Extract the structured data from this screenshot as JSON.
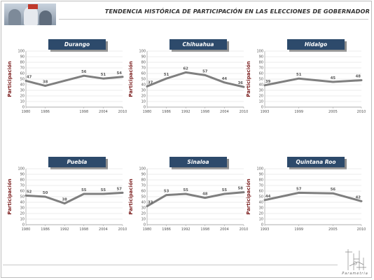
{
  "header": {
    "title": "TENDENCIA HISTÓRICA DE PARTICIPACIÓN EN LAS ELECCIONES DE GOBERNADOR"
  },
  "footer": {
    "logo_text": "Parametria"
  },
  "colors": {
    "line": "#7f7f7f",
    "title_button": "#2d4a6b",
    "title_button_shadow": "#8c8c8c",
    "axis_label": "#7a1c1c",
    "grid": "#d8d8d8"
  },
  "chart_data": [
    {
      "type": "line",
      "title": "Durango",
      "ylabel": "Participación",
      "ylim": [
        0,
        100
      ],
      "yticks": [
        "0",
        "10",
        "20",
        "30",
        "40",
        "50",
        "60",
        "70",
        "80",
        "90",
        "100"
      ],
      "x": [
        1980,
        1986,
        1998,
        2004,
        2010
      ],
      "xtick_labels": [
        "1980",
        "1986",
        "1998",
        "2004",
        "2010"
      ],
      "values": [
        47,
        38,
        56,
        51,
        54
      ],
      "labels": [
        "47",
        "38",
        "56",
        "51",
        "54"
      ],
      "grid": "horizontal"
    },
    {
      "type": "line",
      "title": "Chihuahua",
      "ylabel": "Participación",
      "ylim": [
        0,
        100
      ],
      "yticks": [
        "0",
        "10",
        "20",
        "30",
        "40",
        "50",
        "60",
        "70",
        "80",
        "90",
        "100"
      ],
      "x": [
        1980,
        1986,
        1992,
        1998,
        2004,
        2010
      ],
      "xtick_labels": [
        "1980",
        "1986",
        "1992",
        "1998",
        "2004",
        "2010"
      ],
      "values": [
        37,
        51,
        62,
        57,
        44,
        36
      ],
      "labels": [
        "37",
        "51",
        "62",
        "57",
        "44",
        "36"
      ],
      "grid": "horizontal"
    },
    {
      "type": "line",
      "title": "Hidalgo",
      "ylabel": "Participación",
      "ylim": [
        0,
        100
      ],
      "yticks": [
        "0",
        "10",
        "20",
        "30",
        "40",
        "50",
        "60",
        "70",
        "80",
        "90",
        "100"
      ],
      "x": [
        1993,
        1999,
        2005,
        2010
      ],
      "xtick_labels": [
        "1993",
        "1999",
        "2005",
        "2010"
      ],
      "values": [
        39,
        51,
        45,
        48
      ],
      "labels": [
        "39",
        "51",
        "45",
        "48"
      ],
      "grid": "horizontal"
    },
    {
      "type": "line",
      "title": "Puebla",
      "ylabel": "Participación",
      "ylim": [
        0,
        100
      ],
      "yticks": [
        "0",
        "10",
        "20",
        "30",
        "40",
        "50",
        "60",
        "70",
        "80",
        "90",
        "100"
      ],
      "x": [
        1980,
        1986,
        1992,
        1998,
        2004,
        2010
      ],
      "xtick_labels": [
        "1980",
        "1986",
        "1992",
        "1998",
        "2004",
        "2010"
      ],
      "values": [
        52,
        50,
        38,
        55,
        55,
        57
      ],
      "labels": [
        "52",
        "50",
        "38",
        "55",
        "55",
        "57"
      ],
      "grid": "horizontal"
    },
    {
      "type": "line",
      "title": "Sinaloa",
      "ylabel": "Participación",
      "ylim": [
        0,
        100
      ],
      "yticks": [
        "0",
        "10",
        "20",
        "30",
        "40",
        "50",
        "60",
        "70",
        "80",
        "90",
        "100"
      ],
      "x": [
        1980,
        1986,
        1992,
        1998,
        2004,
        2010
      ],
      "xtick_labels": [
        "1980",
        "1986",
        "1992",
        "1998",
        "2004",
        "2010"
      ],
      "values": [
        33,
        53,
        55,
        48,
        55,
        58
      ],
      "labels": [
        "33",
        "53",
        "55",
        "48",
        "55",
        "58"
      ],
      "grid": "horizontal"
    },
    {
      "type": "line",
      "title": "Quintana Roo",
      "ylabel": "Participación",
      "ylim": [
        0,
        100
      ],
      "yticks": [
        "0",
        "10",
        "20",
        "30",
        "40",
        "50",
        "60",
        "70",
        "80",
        "90",
        "100"
      ],
      "x": [
        1993,
        1999,
        2005,
        2010
      ],
      "xtick_labels": [
        "1993",
        "1999",
        "2005",
        "2010"
      ],
      "values": [
        44,
        57,
        56,
        42
      ],
      "labels": [
        "44",
        "57",
        "56",
        "42"
      ],
      "grid": "horizontal"
    }
  ]
}
